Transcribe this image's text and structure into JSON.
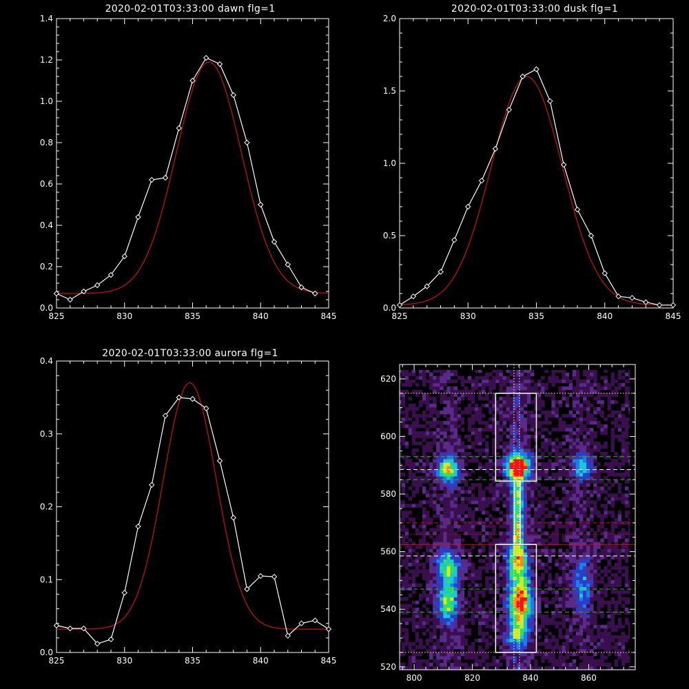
{
  "chart_data": [
    {
      "type": "line",
      "title": "2020-02-01T03:33:00 dawn flg=1",
      "xlim": [
        825,
        845
      ],
      "ylim": [
        0,
        1.4
      ],
      "xticks": [
        825,
        830,
        835,
        840,
        845
      ],
      "yticks": [
        0.0,
        0.2,
        0.4,
        0.6,
        0.8,
        1.0,
        1.2,
        1.4
      ],
      "yticklabels": [
        "0.0",
        "0.2",
        "0.4",
        "0.6",
        "0.8",
        "1.0",
        "1.2",
        "1.4"
      ],
      "series": [
        {
          "role": "data",
          "color": "#ffffff",
          "marker": "diamond",
          "x": [
            825,
            826,
            827,
            828,
            829,
            830,
            831,
            832,
            833,
            834,
            835,
            836,
            837,
            838,
            839,
            840,
            841,
            842,
            843,
            844
          ],
          "y": [
            0.07,
            0.04,
            0.08,
            0.11,
            0.16,
            0.25,
            0.44,
            0.62,
            0.63,
            0.87,
            1.1,
            1.21,
            1.18,
            1.03,
            0.8,
            0.5,
            0.32,
            0.21,
            0.1,
            0.07
          ]
        },
        {
          "role": "fit",
          "color": "#d01010",
          "gaussian": {
            "amplitude": 1.12,
            "center": 836.2,
            "sigma": 2.4,
            "baseline": 0.07
          }
        }
      ]
    },
    {
      "type": "line",
      "title": "2020-02-01T03:33:00 dusk flg=1",
      "xlim": [
        825,
        845
      ],
      "ylim": [
        0,
        2.0
      ],
      "xticks": [
        825,
        830,
        835,
        840,
        845
      ],
      "yticks": [
        0.0,
        0.5,
        1.0,
        1.5,
        2.0
      ],
      "yticklabels": [
        "0.0",
        "0.5",
        "1.0",
        "1.5",
        "2.0"
      ],
      "series": [
        {
          "role": "data",
          "color": "#ffffff",
          "marker": "diamond",
          "x": [
            825,
            826,
            827,
            828,
            829,
            830,
            831,
            832,
            833,
            834,
            835,
            836,
            837,
            838,
            839,
            840,
            841,
            842,
            843,
            844,
            845
          ],
          "y": [
            0.02,
            0.08,
            0.15,
            0.25,
            0.47,
            0.7,
            0.88,
            1.1,
            1.37,
            1.6,
            1.65,
            1.43,
            0.99,
            0.68,
            0.5,
            0.24,
            0.08,
            0.07,
            0.04,
            0.02,
            0.02
          ]
        },
        {
          "role": "fit",
          "color": "#d01010",
          "gaussian": {
            "amplitude": 1.58,
            "center": 834.3,
            "sigma": 2.6,
            "baseline": 0.02
          }
        }
      ]
    },
    {
      "type": "line",
      "title": "2020-02-01T03:33:00 aurora flg=1",
      "xlim": [
        825,
        845
      ],
      "ylim": [
        0,
        0.4
      ],
      "xticks": [
        825,
        830,
        835,
        840,
        845
      ],
      "yticks": [
        0.0,
        0.1,
        0.2,
        0.3,
        0.4
      ],
      "yticklabels": [
        "0.0",
        "0.1",
        "0.2",
        "0.3",
        "0.4"
      ],
      "series": [
        {
          "role": "data",
          "color": "#ffffff",
          "marker": "diamond",
          "x": [
            825,
            826,
            827,
            828,
            829,
            830,
            831,
            832,
            833,
            834,
            835,
            836,
            837,
            838,
            839,
            840,
            841,
            842,
            843,
            844,
            845
          ],
          "y": [
            0.037,
            0.033,
            0.033,
            0.012,
            0.018,
            0.082,
            0.173,
            0.23,
            0.325,
            0.35,
            0.348,
            0.335,
            0.263,
            0.185,
            0.087,
            0.105,
            0.104,
            0.023,
            0.04,
            0.044,
            0.032
          ]
        },
        {
          "role": "fit",
          "color": "#d01010",
          "gaussian": {
            "amplitude": 0.338,
            "center": 834.8,
            "sigma": 1.95,
            "baseline": 0.032
          }
        }
      ]
    },
    {
      "type": "heatmap",
      "xlim": [
        795,
        876
      ],
      "ylim": [
        519,
        625
      ],
      "xticks": [
        800,
        820,
        840,
        860
      ],
      "yticks": [
        520,
        540,
        560,
        580,
        600,
        620
      ],
      "colormap": [
        "#000000",
        "#3a0f4e",
        "#5a2a8a",
        "#2a3fc8",
        "#1e7ee8",
        "#18c8d8",
        "#30e060",
        "#d8e820",
        "#ff8a10",
        "#ff1010"
      ],
      "bright_spots": [
        {
          "x": 835,
          "y": 589,
          "intensity": 1.0,
          "sx": 3.0,
          "sy": 3.0
        },
        {
          "x": 835,
          "y": 578,
          "intensity": 0.55,
          "sx": 1.4,
          "sy": 6.5
        },
        {
          "x": 835,
          "y": 566,
          "intensity": 0.45,
          "sx": 1.3,
          "sy": 4.0
        },
        {
          "x": 835,
          "y": 556,
          "intensity": 0.65,
          "sx": 2.5,
          "sy": 4.5
        },
        {
          "x": 836,
          "y": 542,
          "intensity": 0.85,
          "sx": 2.8,
          "sy": 5.5
        },
        {
          "x": 835,
          "y": 531,
          "intensity": 0.45,
          "sx": 2.5,
          "sy": 3.5
        },
        {
          "x": 811,
          "y": 588,
          "intensity": 0.7,
          "sx": 2.6,
          "sy": 3.0
        },
        {
          "x": 811,
          "y": 554,
          "intensity": 0.55,
          "sx": 2.6,
          "sy": 4.0
        },
        {
          "x": 811,
          "y": 542,
          "intensity": 0.6,
          "sx": 2.5,
          "sy": 4.5
        },
        {
          "x": 857,
          "y": 589,
          "intensity": 0.5,
          "sx": 2.2,
          "sy": 3.0
        },
        {
          "x": 857,
          "y": 548,
          "intensity": 0.35,
          "sx": 2.2,
          "sy": 7.0
        }
      ],
      "boxes": [
        {
          "x": [
            828,
            842
          ],
          "y": [
            584.5,
            615
          ],
          "color": "#ffffff"
        },
        {
          "x": [
            828,
            842
          ],
          "y": [
            525,
            562.5
          ],
          "color": "#ffffff"
        }
      ],
      "hlines": [
        {
          "y": 615,
          "color": "#ffff80",
          "style": "dotted"
        },
        {
          "y": 593,
          "color": "#20c020",
          "style": "dashed"
        },
        {
          "y": 588.5,
          "color": "#ffffff",
          "style": "dashed"
        },
        {
          "y": 585,
          "color": "#20c020",
          "style": "dashed"
        },
        {
          "y": 570,
          "color": "#d01010",
          "style": "dashed"
        },
        {
          "y": 566,
          "color": "#d01010",
          "style": "dotted"
        },
        {
          "y": 562.5,
          "color": "#d01010",
          "style": "solid"
        },
        {
          "y": 558.5,
          "color": "#ffffff",
          "style": "dashed"
        },
        {
          "y": 547,
          "color": "#20c020",
          "style": "dashed"
        },
        {
          "y": 539,
          "color": "#20c020",
          "style": "dashed"
        },
        {
          "y": 525,
          "color": "#ffff80",
          "style": "dotted"
        }
      ],
      "vlines": [
        {
          "x": 834.3,
          "color": "#ffffff",
          "style": "dotted"
        },
        {
          "x": 836.2,
          "color": "#ffffff",
          "style": "dotted"
        }
      ]
    }
  ]
}
